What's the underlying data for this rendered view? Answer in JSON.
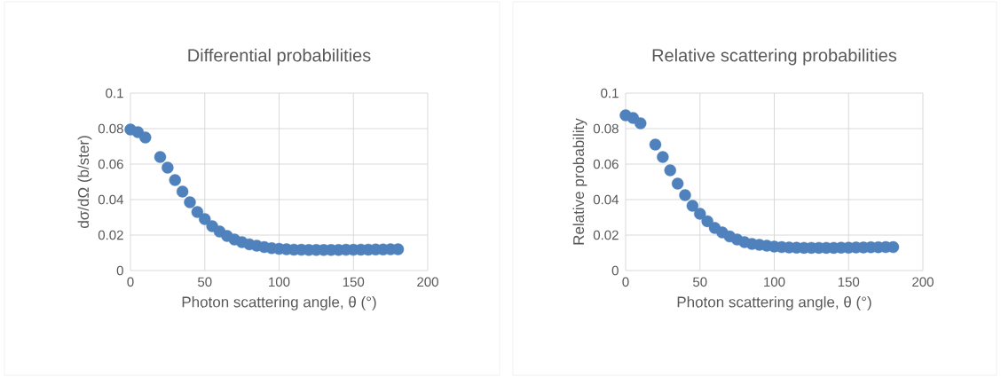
{
  "chart_data": [
    {
      "type": "scatter",
      "title": "Differential probabilities",
      "xlabel": "Photon scattering angle, θ (°)",
      "ylabel": "dσ/dΩ (b/ster)",
      "x": [
        0,
        5,
        10,
        20,
        25,
        30,
        35,
        40,
        45,
        50,
        55,
        60,
        65,
        70,
        75,
        80,
        85,
        90,
        95,
        100,
        105,
        110,
        115,
        120,
        125,
        130,
        135,
        140,
        145,
        150,
        155,
        160,
        165,
        170,
        175,
        180
      ],
      "series": [
        {
          "color": "#4f81bd",
          "values": [
            0.0795,
            0.078,
            0.075,
            0.064,
            0.058,
            0.051,
            0.0445,
            0.0385,
            0.033,
            0.029,
            0.025,
            0.022,
            0.0195,
            0.0175,
            0.016,
            0.0148,
            0.014,
            0.0132,
            0.0126,
            0.0122,
            0.012,
            0.0118,
            0.0117,
            0.0116,
            0.0116,
            0.0116,
            0.0116,
            0.0116,
            0.0117,
            0.0117,
            0.0118,
            0.0118,
            0.0119,
            0.0119,
            0.012,
            0.012
          ]
        }
      ],
      "xlim": [
        0,
        200
      ],
      "ylim": [
        0,
        0.1
      ],
      "xticks": [
        0,
        50,
        100,
        150,
        200
      ],
      "yticks": [
        0,
        0.02,
        0.04,
        0.06,
        0.08,
        0.1
      ],
      "grid": true,
      "marker": "circle"
    },
    {
      "type": "scatter",
      "title": "Relative scattering probabilities",
      "xlabel": "Photon scattering angle, θ (°)",
      "ylabel": "Relative probability",
      "x": [
        0,
        5,
        10,
        20,
        25,
        30,
        35,
        40,
        45,
        50,
        55,
        60,
        65,
        70,
        75,
        80,
        85,
        90,
        95,
        100,
        105,
        110,
        115,
        120,
        125,
        130,
        135,
        140,
        145,
        150,
        155,
        160,
        165,
        170,
        175,
        180
      ],
      "series": [
        {
          "color": "#4f81bd",
          "values": [
            0.0875,
            0.086,
            0.083,
            0.071,
            0.064,
            0.0565,
            0.049,
            0.0425,
            0.0365,
            0.032,
            0.0278,
            0.024,
            0.0215,
            0.0192,
            0.0175,
            0.016,
            0.015,
            0.0145,
            0.014,
            0.0135,
            0.0132,
            0.013,
            0.0129,
            0.0128,
            0.0128,
            0.0128,
            0.0128,
            0.0128,
            0.0129,
            0.0129,
            0.013,
            0.013,
            0.0131,
            0.0131,
            0.0132,
            0.0132
          ]
        }
      ],
      "xlim": [
        0,
        200
      ],
      "ylim": [
        0,
        0.1
      ],
      "xticks": [
        0,
        50,
        100,
        150,
        200
      ],
      "yticks": [
        0,
        0.02,
        0.04,
        0.06,
        0.08,
        0.1
      ],
      "grid": true,
      "marker": "circle"
    }
  ]
}
